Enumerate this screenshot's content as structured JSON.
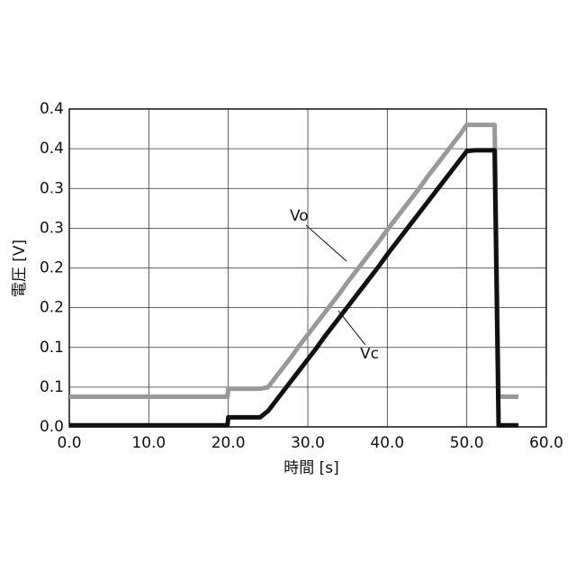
{
  "chart_data": {
    "type": "line",
    "xlabel": "時間 [s]",
    "ylabel": "電圧 [V]",
    "xlim": [
      0,
      60
    ],
    "ylim": [
      0,
      0.4
    ],
    "xticks": [
      {
        "value": 0,
        "label": "0.0"
      },
      {
        "value": 10,
        "label": "10.0"
      },
      {
        "value": 20,
        "label": "20.0"
      },
      {
        "value": 30,
        "label": "30.0"
      },
      {
        "value": 40,
        "label": "40.0"
      },
      {
        "value": 50,
        "label": "50.0"
      },
      {
        "value": 60,
        "label": "60.0"
      }
    ],
    "yticks": [
      {
        "value": 0,
        "label": "0.0"
      },
      {
        "value": 0.05,
        "label": "0.1"
      },
      {
        "value": 0.1,
        "label": "0.1"
      },
      {
        "value": 0.15,
        "label": "0.2"
      },
      {
        "value": 0.2,
        "label": "0.2"
      },
      {
        "value": 0.25,
        "label": "0.3"
      },
      {
        "value": 0.3,
        "label": "0.3"
      },
      {
        "value": 0.35,
        "label": "0.4"
      },
      {
        "value": 0.4,
        "label": "0.4"
      }
    ],
    "grid": true,
    "x": [
      0,
      5,
      10,
      15,
      19.9,
      20,
      24,
      25,
      26,
      27,
      28,
      29,
      30,
      31,
      32,
      33,
      34,
      35,
      36,
      37,
      38,
      39,
      40,
      41,
      42,
      43,
      44,
      45,
      46,
      47,
      48,
      49,
      50,
      51,
      52,
      53,
      53.5,
      54,
      55,
      56,
      56.5
    ],
    "series": [
      {
        "name": "Vo",
        "color": "#999999",
        "values": [
          0.038,
          0.038,
          0.038,
          0.038,
          0.038,
          0.048,
          0.048,
          0.05,
          0.063,
          0.076,
          0.089,
          0.103,
          0.116,
          0.129,
          0.142,
          0.155,
          0.168,
          0.182,
          0.195,
          0.208,
          0.221,
          0.234,
          0.248,
          0.261,
          0.274,
          0.287,
          0.3,
          0.314,
          0.327,
          0.34,
          0.353,
          0.366,
          0.38,
          0.38,
          0.38,
          0.38,
          0.38,
          0.038,
          0.038,
          0.038,
          0.038
        ]
      },
      {
        "name": "Vc",
        "color": "#111111",
        "values": [
          0.002,
          0.002,
          0.002,
          0.002,
          0.002,
          0.012,
          0.012,
          0.02,
          0.033,
          0.046,
          0.059,
          0.072,
          0.085,
          0.098,
          0.112,
          0.125,
          0.138,
          0.151,
          0.164,
          0.177,
          0.19,
          0.203,
          0.217,
          0.23,
          0.243,
          0.256,
          0.269,
          0.282,
          0.295,
          0.308,
          0.321,
          0.334,
          0.347,
          0.348,
          0.348,
          0.348,
          0.348,
          0.002,
          0.002,
          0.002,
          0.002
        ]
      }
    ]
  }
}
